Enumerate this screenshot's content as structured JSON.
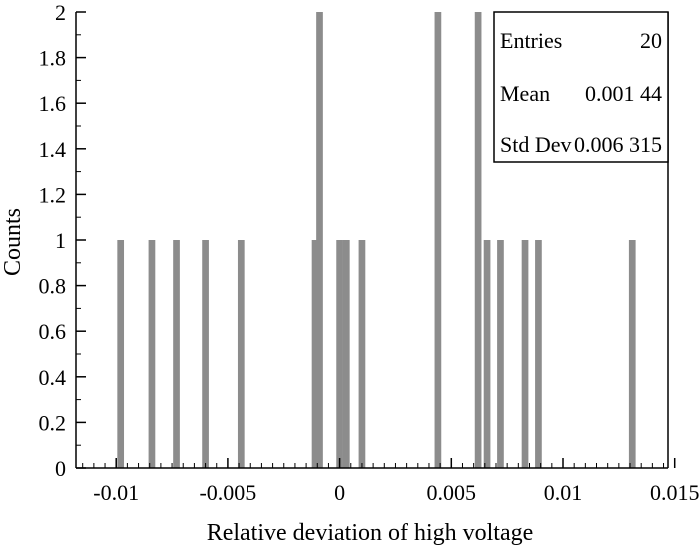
{
  "chart_data": {
    "type": "bar",
    "title": "",
    "xlabel": "Relative deviation of high voltage",
    "ylabel": "Counts",
    "xlim": [
      -0.0118,
      0.0147
    ],
    "ylim": [
      0,
      2
    ],
    "bin_width": 0.0003,
    "x_ticks": [
      -0.01,
      -0.005,
      0,
      0.005,
      0.01,
      0.015
    ],
    "x_tick_labels": [
      "-0.01",
      "-0.005",
      "0",
      "0.005",
      "0.01",
      "0.015"
    ],
    "y_ticks": [
      0,
      0.2,
      0.4,
      0.6,
      0.8,
      1,
      1.2,
      1.4,
      1.6,
      1.8,
      2
    ],
    "y_tick_labels": [
      "0",
      "0.2",
      "0.4",
      "0.6",
      "0.8",
      "1",
      "1.2",
      "1.4",
      "1.6",
      "1.8",
      "2"
    ],
    "bar_color": "#8c8c8c",
    "bars": [
      {
        "x": -0.0098,
        "count": 1
      },
      {
        "x": -0.0084,
        "count": 1
      },
      {
        "x": -0.0073,
        "count": 1
      },
      {
        "x": -0.006,
        "count": 1
      },
      {
        "x": -0.0044,
        "count": 1
      },
      {
        "x": -0.0011,
        "count": 1
      },
      {
        "x": -0.0009,
        "count": 2
      },
      {
        "x": 0.0,
        "count": 1
      },
      {
        "x": 0.0003,
        "count": 1
      },
      {
        "x": 0.001,
        "count": 1
      },
      {
        "x": 0.0044,
        "count": 2
      },
      {
        "x": 0.0062,
        "count": 2
      },
      {
        "x": 0.0066,
        "count": 1
      },
      {
        "x": 0.0072,
        "count": 1
      },
      {
        "x": 0.0083,
        "count": 1
      },
      {
        "x": 0.0089,
        "count": 1
      },
      {
        "x": 0.0131,
        "count": 1
      }
    ],
    "stats": {
      "entries_label": "Entries",
      "entries_value": "20",
      "mean_label": "Mean",
      "mean_value": "0.001 44",
      "std_label": "Std Dev",
      "std_value": "0.006 315"
    }
  }
}
